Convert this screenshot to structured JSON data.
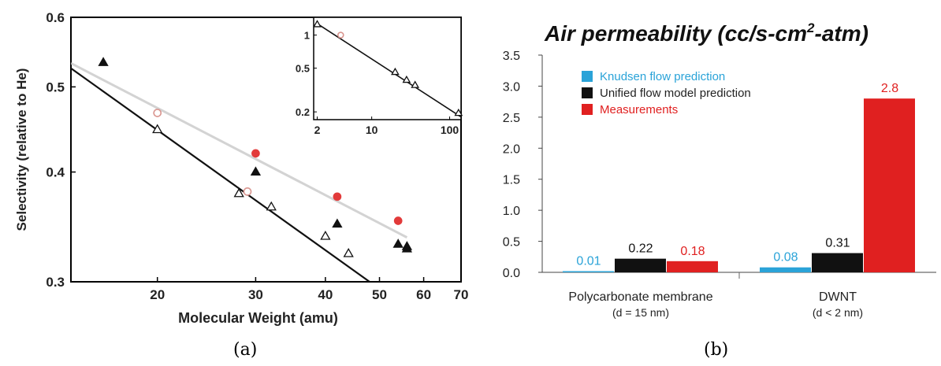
{
  "chart_data": [
    {
      "type": "scatter",
      "panel_label": "(a)",
      "xlabel": "Molecular Weight (amu)",
      "ylabel": "Selectivity (relative to He)",
      "x_scale": "log",
      "y_scale": "log",
      "xlim": [
        14,
        70
      ],
      "ylim": [
        0.3,
        0.6
      ],
      "x_ticks": [
        20,
        30,
        40,
        50,
        60,
        70
      ],
      "y_ticks": [
        0.3,
        0.4,
        0.5,
        0.6
      ],
      "grid": false,
      "series": [
        {
          "marker": "filled-triangle",
          "color": "#111111",
          "points": [
            [
              16,
              0.533
            ],
            [
              30,
              0.4
            ],
            [
              42,
              0.349
            ],
            [
              54,
              0.331
            ],
            [
              56,
              0.329
            ],
            [
              56,
              0.327
            ]
          ]
        },
        {
          "marker": "open-triangle",
          "color": "#111111",
          "points": [
            [
              20,
              0.447
            ],
            [
              28,
              0.378
            ],
            [
              32,
              0.365
            ],
            [
              40,
              0.338
            ],
            [
              44,
              0.323
            ]
          ]
        },
        {
          "marker": "open-circle",
          "color": "#d9958f",
          "points": [
            [
              20,
              0.467
            ],
            [
              29,
              0.38
            ]
          ]
        },
        {
          "marker": "filled-circle",
          "color": "#e23a3a",
          "points": [
            [
              30,
              0.42
            ],
            [
              42,
              0.375
            ],
            [
              54,
              0.352
            ]
          ]
        }
      ],
      "lines": [
        {
          "style": "solid",
          "color": "#111111",
          "points": [
            [
              14,
              0.525
            ],
            [
              48,
              0.3
            ]
          ]
        },
        {
          "style": "faded",
          "color": "#c8c8c8",
          "points": [
            [
              14,
              0.532
            ],
            [
              56,
              0.337
            ]
          ]
        }
      ],
      "inset": {
        "x_scale": "log",
        "y_scale": "log",
        "xlim": [
          1.8,
          140
        ],
        "ylim": [
          0.17,
          1.45
        ],
        "x_ticks": [
          2,
          10,
          100
        ],
        "y_ticks": [
          0.2,
          0.5,
          1
        ],
        "points": [
          [
            2,
            1.25,
            "open-triangle"
          ],
          [
            4,
            1.0,
            "open-circle"
          ],
          [
            20,
            0.46,
            "open-triangle"
          ],
          [
            28,
            0.39,
            "open-triangle"
          ],
          [
            36,
            0.35,
            "open-triangle"
          ],
          [
            130,
            0.195,
            "open-triangle"
          ]
        ],
        "line": [
          [
            2,
            1.27
          ],
          [
            140,
            0.18
          ]
        ]
      }
    },
    {
      "type": "bar",
      "panel_label": "(b)",
      "title_main": "Air permeability (cc/s-cm",
      "title_sup": "2",
      "title_end": "-atm)",
      "ylim": [
        0,
        3.5
      ],
      "y_ticks": [
        0.0,
        0.5,
        1.0,
        1.5,
        2.0,
        2.5,
        3.0,
        3.5
      ],
      "categories": [
        {
          "name": "Polycarbonate membrane",
          "sub": "(d = 15 nm)"
        },
        {
          "name": "DWNT",
          "sub": "(d < 2 nm)"
        }
      ],
      "series": [
        {
          "name": "Knudsen flow prediction",
          "color": "#2aa3d8",
          "values": [
            0.01,
            0.08
          ],
          "labels": [
            "0.01",
            "0.08"
          ]
        },
        {
          "name": "Unified flow model prediction",
          "color": "#111111",
          "values": [
            0.22,
            0.31
          ],
          "labels": [
            "0.22",
            "0.31"
          ]
        },
        {
          "name": "Measurements",
          "color": "#e02020",
          "values": [
            0.18,
            2.8
          ],
          "labels": [
            "0.18",
            "2.8"
          ]
        }
      ],
      "legend_position": "top-left",
      "grid": false
    }
  ]
}
